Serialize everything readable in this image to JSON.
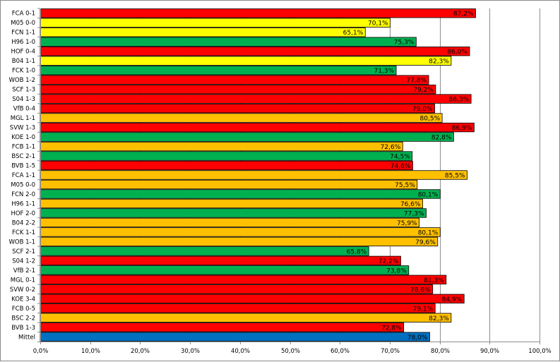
{
  "chart_data": {
    "type": "bar",
    "orientation": "horizontal",
    "title": "",
    "xlabel": "",
    "ylabel": "",
    "xlim": [
      0,
      100
    ],
    "grid": true,
    "legend": "none",
    "x_ticks": [
      "0,0%",
      "10,0%",
      "20,0%",
      "30,0%",
      "40,0%",
      "50,0%",
      "60,0%",
      "70,0%",
      "80,0%",
      "90,0%",
      "100,0%"
    ],
    "bars": [
      {
        "label": "FCA 0-1",
        "value": 87.2,
        "value_label": "87,2%",
        "color": "#ff0000"
      },
      {
        "label": "M05 0-0",
        "value": 70.1,
        "value_label": "70,1%",
        "color": "#ffff00"
      },
      {
        "label": "FCN 1-1",
        "value": 65.1,
        "value_label": "65,1%",
        "color": "#ffff00"
      },
      {
        "label": "H96 1-0",
        "value": 75.3,
        "value_label": "75,3%",
        "color": "#00b050"
      },
      {
        "label": "HOF 0-4",
        "value": 86.0,
        "value_label": "86,0%",
        "color": "#ff0000"
      },
      {
        "label": "B04 1-1",
        "value": 82.3,
        "value_label": "82,3%",
        "color": "#ffff00"
      },
      {
        "label": "FCK 1-0",
        "value": 71.3,
        "value_label": "71,3%",
        "color": "#00b050"
      },
      {
        "label": "WOB 1-2",
        "value": 77.8,
        "value_label": "77,8%",
        "color": "#ff0000"
      },
      {
        "label": "SCF 1-3",
        "value": 79.2,
        "value_label": "79,2%",
        "color": "#ff0000"
      },
      {
        "label": "S04 1-3",
        "value": 86.3,
        "value_label": "86,3%",
        "color": "#ff0000"
      },
      {
        "label": "VfB 0-4",
        "value": 79.0,
        "value_label": "79,0%",
        "color": "#ff0000"
      },
      {
        "label": "MGL 1-1",
        "value": 80.5,
        "value_label": "80,5%",
        "color": "#ffc000"
      },
      {
        "label": "SVW 1-3",
        "value": 86.9,
        "value_label": "86,9%",
        "color": "#ff0000"
      },
      {
        "label": "KOE 1-0",
        "value": 82.8,
        "value_label": "82,8%",
        "color": "#00b050"
      },
      {
        "label": "FCB 1-1",
        "value": 72.6,
        "value_label": "72,6%",
        "color": "#ffc000"
      },
      {
        "label": "BSC 2-1",
        "value": 74.5,
        "value_label": "74,5%",
        "color": "#00b050"
      },
      {
        "label": "BVB 1-5",
        "value": 74.6,
        "value_label": "74,6%",
        "color": "#ff0000"
      },
      {
        "label": "FCA 1-1",
        "value": 85.5,
        "value_label": "85,5%",
        "color": "#ffc000"
      },
      {
        "label": "M05 0-0",
        "value": 75.5,
        "value_label": "75,5%",
        "color": "#ffc000"
      },
      {
        "label": "FCN 2-0",
        "value": 80.1,
        "value_label": "80,1%",
        "color": "#00b050"
      },
      {
        "label": "H96 1-1",
        "value": 76.6,
        "value_label": "76,6%",
        "color": "#ffc000"
      },
      {
        "label": "HOF 2-0",
        "value": 77.3,
        "value_label": "77,3%",
        "color": "#00b050"
      },
      {
        "label": "B04 2-2",
        "value": 75.9,
        "value_label": "75,9%",
        "color": "#ffc000"
      },
      {
        "label": "FCK 1-1",
        "value": 80.1,
        "value_label": "80,1%",
        "color": "#ffc000"
      },
      {
        "label": "WOB 1-1",
        "value": 79.6,
        "value_label": "79,6%",
        "color": "#ffc000"
      },
      {
        "label": "SCF 2-1",
        "value": 65.8,
        "value_label": "65,8%",
        "color": "#00b050"
      },
      {
        "label": "S04 1-2",
        "value": 72.2,
        "value_label": "72,2%",
        "color": "#ff0000"
      },
      {
        "label": "VfB 2-1",
        "value": 73.8,
        "value_label": "73,8%",
        "color": "#00b050"
      },
      {
        "label": "MGL 0-1",
        "value": 81.3,
        "value_label": "81,3%",
        "color": "#ff0000"
      },
      {
        "label": "SVW 0-2",
        "value": 78.6,
        "value_label": "78,6%",
        "color": "#ff0000"
      },
      {
        "label": "KOE 3-4",
        "value": 84.9,
        "value_label": "84,9%",
        "color": "#ff0000"
      },
      {
        "label": "FCB 0-5",
        "value": 79.1,
        "value_label": "79,1%",
        "color": "#ff0000"
      },
      {
        "label": "BSC 2-2",
        "value": 82.3,
        "value_label": "82,3%",
        "color": "#ffc000"
      },
      {
        "label": "BVB 1-3",
        "value": 72.8,
        "value_label": "72,8%",
        "color": "#ff0000"
      },
      {
        "label": "Mittel",
        "value": 78.0,
        "value_label": "78,0%",
        "color": "#0070c0"
      }
    ]
  }
}
